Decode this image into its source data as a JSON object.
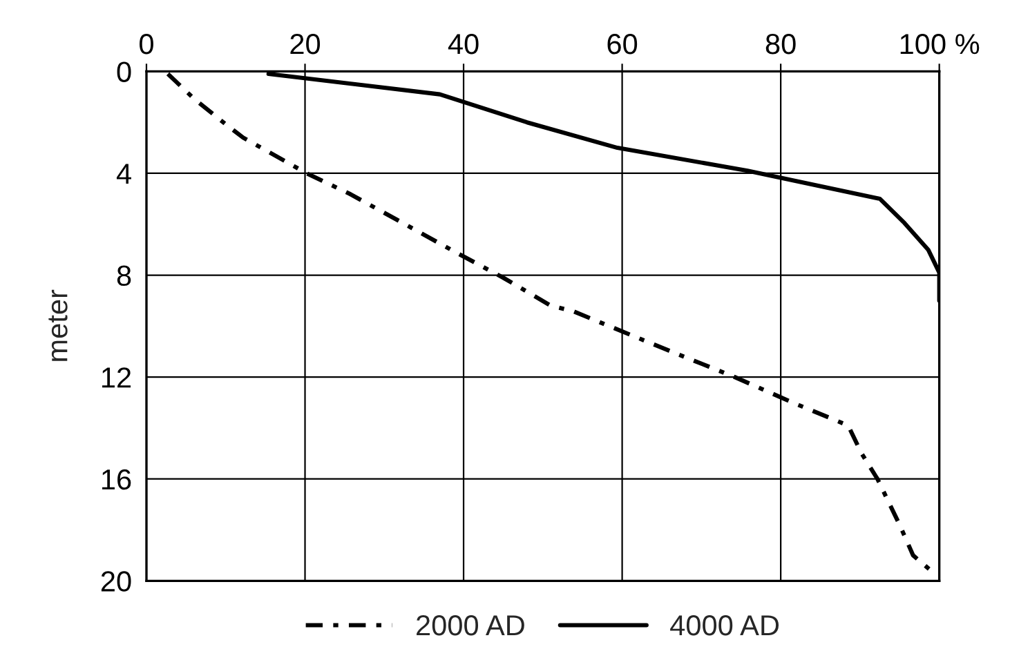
{
  "chart_data": {
    "type": "line",
    "ylabel": "meter",
    "xlim": [
      0,
      100
    ],
    "xticks": [
      0,
      20,
      40,
      60,
      80,
      {
        "value": 100,
        "label": "100 %"
      }
    ],
    "ylim": [
      20,
      0
    ],
    "yticks": [
      0,
      4,
      8,
      12,
      16,
      20
    ],
    "grid": true,
    "legend": "bottom",
    "marker": "none",
    "series": [
      {
        "name": "2000 AD",
        "color": "#000000",
        "line_style": "dashed",
        "x": [
          2.7,
          6.1,
          10.1,
          12.2,
          16.2,
          20.2,
          25.6,
          32.9,
          39,
          45,
          51,
          53.7,
          61.5,
          67,
          74.2,
          81.5,
          88.5,
          90.2,
          92.2,
          95,
          96.7,
          99.7
        ],
        "values": [
          0.1,
          1.1,
          2.1,
          2.6,
          3.3,
          4.0,
          4.8,
          6.05,
          7.1,
          8.1,
          9.2,
          9.4,
          10.4,
          11.1,
          12.0,
          13.0,
          13.9,
          15.0,
          16.0,
          17.8,
          19.0,
          19.8
        ]
      },
      {
        "name": "4000 AD",
        "color": "#000000",
        "line_style": "solid",
        "x": [
          15.4,
          37,
          48,
          59.4,
          75.8,
          92.5,
          95.6,
          98.6,
          100,
          100
        ],
        "values": [
          0.1,
          0.9,
          2.0,
          3.0,
          3.9,
          5.0,
          5.95,
          7.0,
          7.9,
          9.0
        ]
      }
    ]
  }
}
